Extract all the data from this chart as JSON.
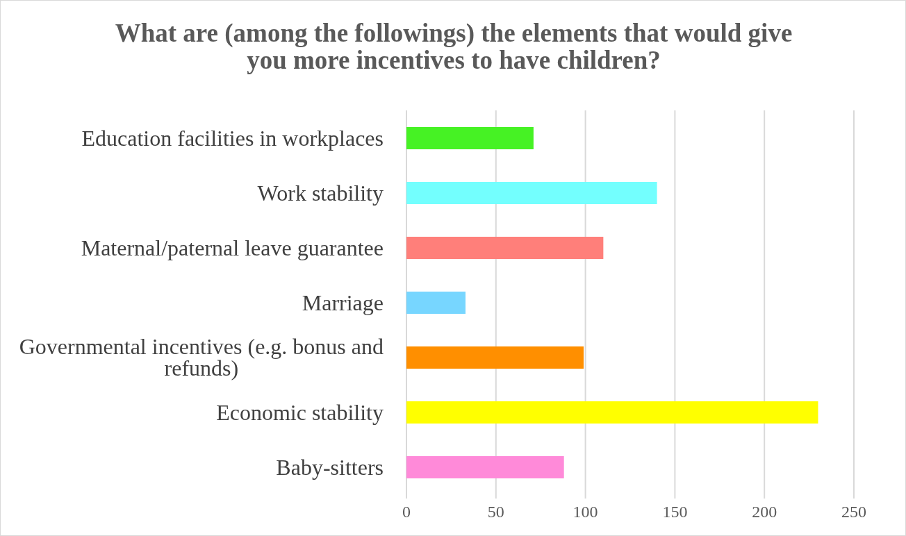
{
  "chart_data": {
    "type": "bar",
    "orientation": "horizontal",
    "title": "What are (among the followings) the elements that would give you more incentives to have children?",
    "categories": [
      "Education facilities in workplaces",
      "Work stability",
      "Maternal/paternal leave guarantee",
      "Marriage",
      "Governmental incentives (e.g. bonus and refunds)",
      "Economic stability",
      "Baby-sitters"
    ],
    "values": [
      71,
      140,
      110,
      33,
      99,
      230,
      88
    ],
    "colors": [
      "#46f224",
      "#73fffe",
      "#ff7f7a",
      "#77d6ff",
      "#ff8f00",
      "#ffff00",
      "#ff8ad9"
    ],
    "xlim": [
      0,
      250
    ],
    "xticks": [
      0,
      50,
      100,
      150,
      200,
      250
    ],
    "grid": "x"
  }
}
